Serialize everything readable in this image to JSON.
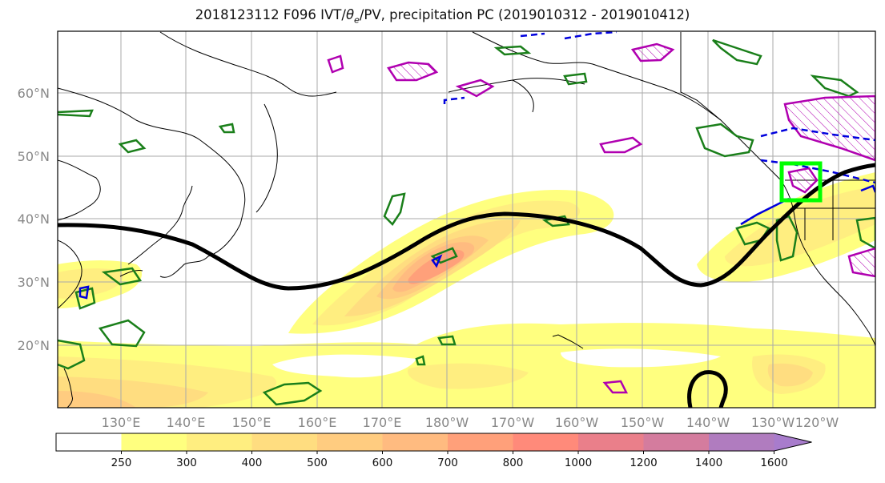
{
  "title": "2018123112 F096 IVT/θₑ/PV, precipitation PC (2019010312 - 2019010412)",
  "title_parts": {
    "prefix": "2018123112 F096 IVT/",
    "theta": "θ",
    "sub": "e",
    "suffix": "/PV, precipitation PC (2019010312 - 2019010412)"
  },
  "lat_labels": [
    "60°N",
    "50°N",
    "40°N",
    "30°N",
    "20°N"
  ],
  "lon_labels": [
    "130°E",
    "140°E",
    "150°E",
    "160°E",
    "170°E",
    "180°W",
    "170°W",
    "160°W",
    "150°W",
    "140°W",
    "130°W",
    "120°W"
  ],
  "colorbar": {
    "tick_labels": [
      "250",
      "300",
      "400",
      "500",
      "600",
      "700",
      "800",
      "1000",
      "1200",
      "1400",
      "1600"
    ],
    "colors": [
      "#ffffff",
      "#ffff7f",
      "#ffee80",
      "#ffdd80",
      "#ffcc80",
      "#ffbb80",
      "#ffa07a",
      "#ff8a7a",
      "#ea7f8a",
      "#d47c9e",
      "#b07cbf",
      "#a87ccc"
    ]
  },
  "colors": {
    "pv_contour": "#000000",
    "theta_green": "#1a7f1a",
    "magenta": "#b000b0",
    "blue": "#0000dd",
    "target_box": "#00ff00",
    "grid": "#aaaaaa",
    "coast": "#000000"
  }
}
